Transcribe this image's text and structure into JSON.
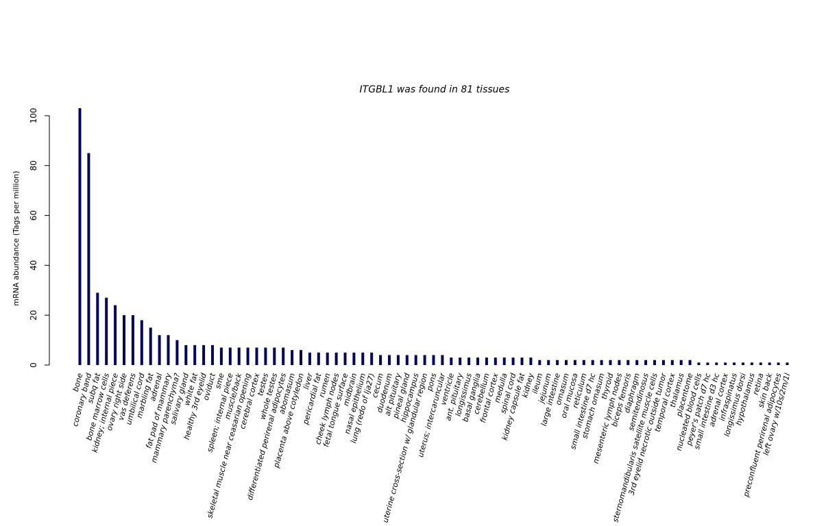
{
  "chart_data": {
    "type": "bar",
    "title": "ITGBL1  was found in  81  tissues",
    "title_parts": {
      "gene": "ITGBL1",
      "mid": "  was found in  ",
      "count": "81",
      "end": "  tissues"
    },
    "xlabel": "",
    "ylabel": "mRNA abundance (Tags per million)",
    "ylim": [
      0,
      103
    ],
    "yticks": [
      0,
      20,
      40,
      60,
      80,
      100
    ],
    "grid": false,
    "bar_color": "#000066",
    "categories": [
      "bone",
      "coronary band",
      "subq fat",
      "bone marrow cells",
      "kidney; internal piece",
      "ovary right side",
      "vas deferens",
      "umbilical cord",
      "marbling fat",
      "adrenal",
      "fat pad of mammary",
      "mammary parenchyma?",
      "salivary gland",
      "white fat",
      "healthy 3rd eyelid",
      "oviduct",
      "sme",
      "spleen; internal piece",
      "muscle/back",
      "skeletal muscle near ceasarian opening",
      "cerebral cortex",
      "testes",
      "whole testes",
      "differentiated perirenal adipocytes",
      "abomasum",
      "placenta above cotyledon",
      "liver",
      "pericardial fat",
      "rumen",
      "cheek lymph nodes",
      "fetal tongue surface",
      "midbrain",
      "nasal epithelium",
      "lung (redo of lja27)",
      "cecum",
      "duodenum",
      "alt pituitary",
      "pineal gland",
      "hippocampus",
      "uterine cross-section w/ glandular region",
      "pons",
      "uterus; intercaruncular",
      "ventricle",
      "ant. pituitary",
      "longissimus",
      "basal ganglia",
      "cerebellum",
      "frontal cortex",
      "medulla",
      "spinal cord",
      "kidney capsule fat",
      "kidney",
      "ileum",
      "jejunum",
      "large intestine",
      "omasum",
      "oral mucosa",
      "reticulum",
      "small intestine d7 hc",
      "stomach omasum",
      "thyroid",
      "mesenteric lymph nodes",
      "biceps femoris",
      "diaphragm",
      "semitendinosus",
      "sternomandibularis satellite muscle cells",
      "3rd eyelid necrotic outside tumor",
      "temporal cortex",
      "thalamus",
      "placentome",
      "nucleated blood cells",
      "peyer's patch d7 hc",
      "small intestine d3 hc",
      "adrenal cortex",
      "infraspinatus",
      "longissimus dorsi",
      "hypothalamus",
      "retina",
      "skin back",
      "preconfluent perirenal adipocytes",
      "left ovary w/10s/2m/1l"
    ],
    "values": [
      103,
      85,
      29,
      27,
      24,
      20,
      20,
      18,
      15,
      12,
      12,
      10,
      8,
      8,
      8,
      8,
      7,
      7,
      7,
      7,
      7,
      7,
      7,
      7,
      6,
      6,
      5,
      5,
      5,
      5,
      5,
      5,
      5,
      5,
      4,
      4,
      4,
      4,
      4,
      4,
      4,
      4,
      3,
      3,
      3,
      3,
      3,
      3,
      3,
      3,
      3,
      3,
      2,
      2,
      2,
      2,
      2,
      2,
      2,
      2,
      2,
      2,
      2,
      2,
      2,
      2,
      2,
      2,
      2,
      2,
      1,
      1,
      1,
      1,
      1,
      1,
      1,
      1,
      1,
      1,
      1
    ]
  }
}
